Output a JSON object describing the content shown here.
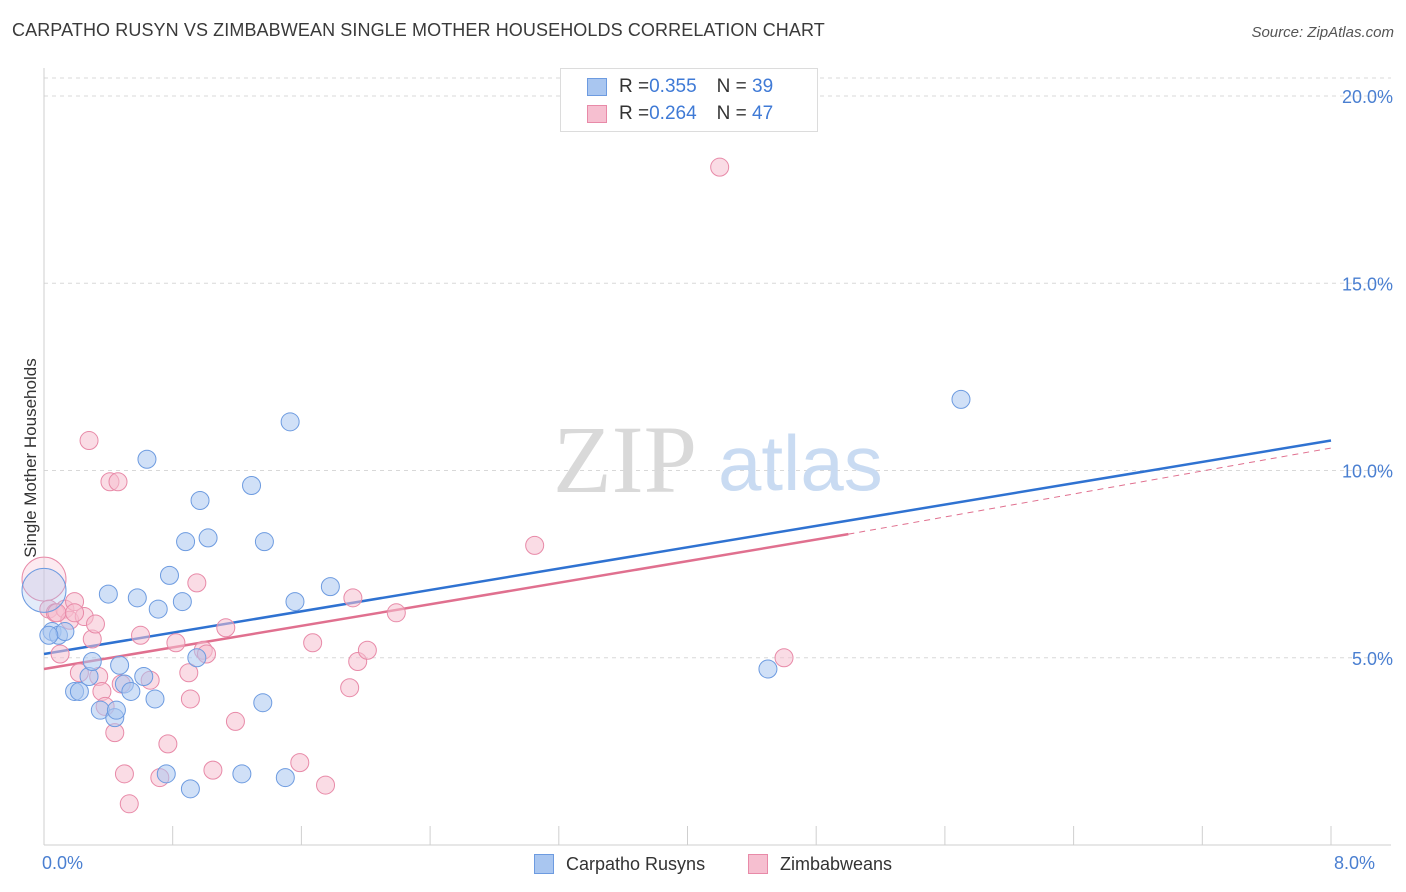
{
  "title": "CARPATHO RUSYN VS ZIMBABWEAN SINGLE MOTHER HOUSEHOLDS CORRELATION CHART",
  "source": "Source: ZipAtlas.com",
  "watermark": {
    "zip": "ZIP",
    "atlas": "atlas"
  },
  "legend": {
    "rows": [
      {
        "r_label": "R = ",
        "r_value": "0.355",
        "n_label": "N = ",
        "n_value": "39",
        "color": "#a9c6f0",
        "border": "#6d9be0"
      },
      {
        "r_label": "R = ",
        "r_value": "0.264",
        "n_label": "N = ",
        "n_value": "47",
        "color": "#f6bfd0",
        "border": "#e88aa8"
      }
    ]
  },
  "bottom_legend": [
    {
      "label": "Carpatho Rusyns",
      "color": "#a9c6f0",
      "border": "#6d9be0"
    },
    {
      "label": "Zimbabweans",
      "color": "#f6bfd0",
      "border": "#e88aa8"
    }
  ],
  "colors": {
    "blue_line": "#2f72d1",
    "pink_line": "#e0708f",
    "grid": "#d8d8d8",
    "axis": "#cfcfcf"
  },
  "chart_data": {
    "type": "scatter",
    "title": "CARPATHO RUSYN VS ZIMBABWEAN SINGLE MOTHER HOUSEHOLDS CORRELATION CHART",
    "xlabel": "",
    "ylabel": "Single Mother Households",
    "xlim": [
      0,
      8
    ],
    "ylim": [
      0,
      20
    ],
    "x_tick_labels": [
      "0.0%",
      "8.0%"
    ],
    "y_ticks": [
      5,
      10,
      15,
      20
    ],
    "y_tick_labels": [
      "5.0%",
      "10.0%",
      "15.0%",
      "20.0%"
    ],
    "grid": true,
    "legend_position": "top-center",
    "series": [
      {
        "name": "Carpatho Rusyns",
        "color": "#a9c6f0",
        "trend": {
          "x": [
            0,
            8
          ],
          "y": [
            5.1,
            10.8
          ],
          "style": "solid"
        },
        "points": [
          {
            "x": 0.0,
            "y": 6.8,
            "big": true
          },
          {
            "x": 0.05,
            "y": 5.7
          },
          {
            "x": 0.09,
            "y": 5.6
          },
          {
            "x": 0.13,
            "y": 5.7
          },
          {
            "x": 0.19,
            "y": 4.1
          },
          {
            "x": 0.22,
            "y": 4.1
          },
          {
            "x": 0.28,
            "y": 4.5
          },
          {
            "x": 0.3,
            "y": 4.9
          },
          {
            "x": 0.35,
            "y": 3.6
          },
          {
            "x": 0.4,
            "y": 6.7
          },
          {
            "x": 0.44,
            "y": 3.4
          },
          {
            "x": 0.47,
            "y": 4.8
          },
          {
            "x": 0.5,
            "y": 4.3
          },
          {
            "x": 0.54,
            "y": 4.1
          },
          {
            "x": 0.58,
            "y": 6.6
          },
          {
            "x": 0.62,
            "y": 4.5
          },
          {
            "x": 0.64,
            "y": 10.3
          },
          {
            "x": 0.69,
            "y": 3.9
          },
          {
            "x": 0.71,
            "y": 6.3
          },
          {
            "x": 0.76,
            "y": 1.9
          },
          {
            "x": 0.78,
            "y": 7.2
          },
          {
            "x": 0.86,
            "y": 6.5
          },
          {
            "x": 0.88,
            "y": 8.1
          },
          {
            "x": 0.91,
            "y": 1.5
          },
          {
            "x": 0.95,
            "y": 5.0
          },
          {
            "x": 0.97,
            "y": 9.2
          },
          {
            "x": 1.02,
            "y": 8.2
          },
          {
            "x": 1.23,
            "y": 1.9
          },
          {
            "x": 1.29,
            "y": 9.6
          },
          {
            "x": 1.36,
            "y": 3.8
          },
          {
            "x": 1.37,
            "y": 8.1
          },
          {
            "x": 1.5,
            "y": 1.8
          },
          {
            "x": 1.53,
            "y": 11.3
          },
          {
            "x": 1.56,
            "y": 6.5
          },
          {
            "x": 1.78,
            "y": 6.9
          },
          {
            "x": 4.5,
            "y": 4.7
          },
          {
            "x": 5.7,
            "y": 11.9
          },
          {
            "x": 0.03,
            "y": 5.6
          },
          {
            "x": 0.45,
            "y": 3.6
          }
        ]
      },
      {
        "name": "Zimbabweans",
        "color": "#f6bfd0",
        "trend": {
          "x": [
            0,
            5.0
          ],
          "y": [
            4.7,
            8.3
          ],
          "style": "solid",
          "dashed_to": [
            8,
            10.6
          ]
        },
        "points": [
          {
            "x": 0.0,
            "y": 7.1,
            "big": true
          },
          {
            "x": 0.03,
            "y": 6.3
          },
          {
            "x": 0.07,
            "y": 6.2
          },
          {
            "x": 0.1,
            "y": 5.1
          },
          {
            "x": 0.13,
            "y": 6.3
          },
          {
            "x": 0.16,
            "y": 6.0
          },
          {
            "x": 0.19,
            "y": 6.5
          },
          {
            "x": 0.22,
            "y": 4.6
          },
          {
            "x": 0.25,
            "y": 6.1
          },
          {
            "x": 0.28,
            "y": 10.8
          },
          {
            "x": 0.3,
            "y": 5.5
          },
          {
            "x": 0.32,
            "y": 5.9
          },
          {
            "x": 0.34,
            "y": 4.5
          },
          {
            "x": 0.36,
            "y": 4.1
          },
          {
            "x": 0.38,
            "y": 3.7
          },
          {
            "x": 0.41,
            "y": 9.7
          },
          {
            "x": 0.44,
            "y": 3.0
          },
          {
            "x": 0.46,
            "y": 9.7
          },
          {
            "x": 0.48,
            "y": 4.3
          },
          {
            "x": 0.5,
            "y": 1.9
          },
          {
            "x": 0.53,
            "y": 1.1
          },
          {
            "x": 0.6,
            "y": 5.6
          },
          {
            "x": 0.66,
            "y": 4.4
          },
          {
            "x": 0.72,
            "y": 1.8
          },
          {
            "x": 0.77,
            "y": 2.7
          },
          {
            "x": 0.82,
            "y": 5.4
          },
          {
            "x": 0.9,
            "y": 4.6
          },
          {
            "x": 0.91,
            "y": 3.9
          },
          {
            "x": 0.95,
            "y": 7.0
          },
          {
            "x": 0.99,
            "y": 5.2
          },
          {
            "x": 1.01,
            "y": 5.1
          },
          {
            "x": 1.05,
            "y": 2.0
          },
          {
            "x": 1.13,
            "y": 5.8
          },
          {
            "x": 1.19,
            "y": 3.3
          },
          {
            "x": 1.59,
            "y": 2.2
          },
          {
            "x": 1.67,
            "y": 5.4
          },
          {
            "x": 1.75,
            "y": 1.6
          },
          {
            "x": 1.9,
            "y": 4.2
          },
          {
            "x": 1.92,
            "y": 6.6
          },
          {
            "x": 1.95,
            "y": 4.9
          },
          {
            "x": 2.01,
            "y": 5.2
          },
          {
            "x": 2.19,
            "y": 6.2
          },
          {
            "x": 3.05,
            "y": 8.0
          },
          {
            "x": 4.2,
            "y": 18.1
          },
          {
            "x": 4.6,
            "y": 5.0
          },
          {
            "x": 0.08,
            "y": 6.2
          },
          {
            "x": 0.19,
            "y": 6.2
          }
        ]
      }
    ]
  }
}
